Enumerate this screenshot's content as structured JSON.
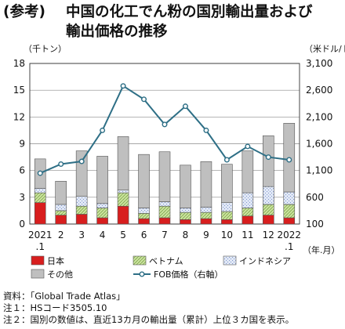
{
  "title": {
    "prefix": "(参考)",
    "line1": "中国の化工でん粉の国別輸出量および",
    "line2": "輸出価格の推移"
  },
  "notes": [
    "資料：「Global Trade Atlas」",
    "注１：HSコード3505.10",
    "注２：国別の数値は、直近13カ月の輸出量（累計）上位３カ国を表示。"
  ],
  "chart_data": {
    "type": "bar",
    "stacked": true,
    "categories": [
      "2021\n.1",
      "2",
      "3",
      "4",
      "5",
      "6",
      "7",
      "8",
      "9",
      "10",
      "11",
      "12",
      "2022\n.1"
    ],
    "y_left": {
      "label": "（千トン）",
      "ticks": [
        0,
        3,
        6,
        9,
        12,
        15,
        18
      ],
      "range": [
        0,
        18
      ]
    },
    "y_right": {
      "label": "（米ドル/トン）",
      "ticks": [
        100,
        600,
        1100,
        1600,
        2100,
        2600,
        3100
      ],
      "tick_labels": [
        "100",
        "600",
        "1,100",
        "1,600",
        "2,100",
        "2,600",
        "3,100"
      ],
      "range": [
        100,
        3100
      ]
    },
    "x_unit": "（年.月）",
    "series": [
      {
        "name": "日本",
        "kind": "bar",
        "color": "#d81e1e",
        "values": [
          2.4,
          1.0,
          1.1,
          0.7,
          2.0,
          0.6,
          0.7,
          0.5,
          0.6,
          0.5,
          0.9,
          1.0,
          0.7
        ]
      },
      {
        "name": "ベトナム",
        "kind": "bar",
        "color": "#c9e29c",
        "values": [
          1.1,
          0.5,
          0.9,
          1.1,
          1.5,
          0.6,
          1.3,
          0.8,
          0.7,
          0.9,
          0.9,
          1.2,
          1.5
        ]
      },
      {
        "name": "インドネシア",
        "kind": "bar",
        "color": "#e4ebf7",
        "values": [
          0.5,
          0.7,
          1.1,
          0.5,
          0.3,
          0.6,
          0.5,
          0.5,
          0.6,
          1.0,
          1.7,
          2.0,
          1.4
        ]
      },
      {
        "name": "その他",
        "kind": "bar",
        "color": "#bfbfbf",
        "values": [
          3.3,
          2.6,
          5.1,
          5.3,
          6.0,
          6.0,
          5.6,
          4.8,
          5.1,
          4.3,
          4.7,
          5.7,
          7.7
        ]
      },
      {
        "name": "FOB価格（右軸）",
        "kind": "line",
        "axis": "right",
        "color": "#2e6f86",
        "values": [
          1050,
          1220,
          1270,
          1850,
          2680,
          2430,
          1960,
          2300,
          1850,
          1300,
          1550,
          1350,
          1300
        ]
      }
    ],
    "legend_position": "bottom"
  }
}
